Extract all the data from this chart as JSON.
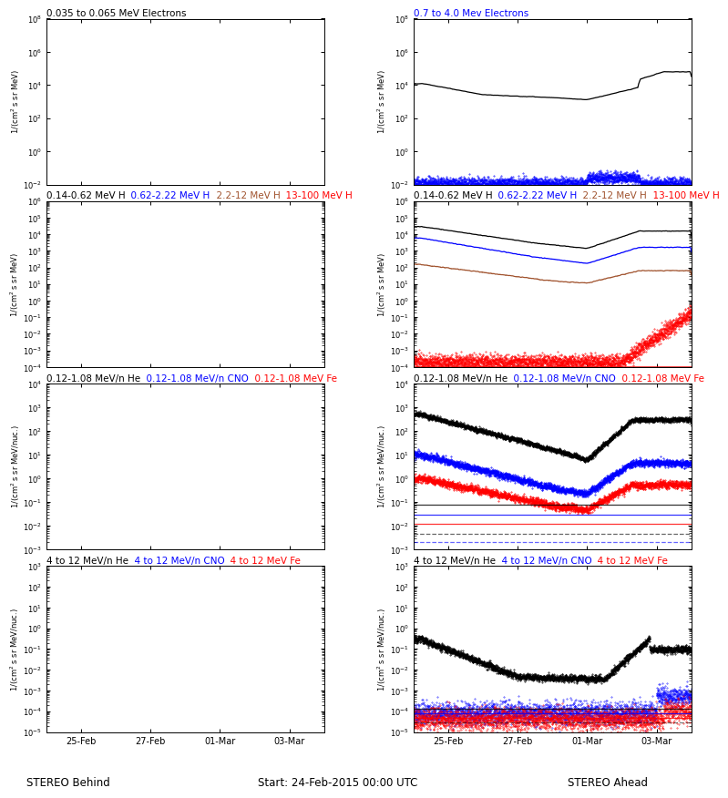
{
  "panels": {
    "row1_left_title": [
      [
        "0.035 to 0.065 MeV Electrons",
        "#000000"
      ]
    ],
    "row1_right_title": [
      [
        "0.7 to 4.0 Mev Electrons",
        "#0000ff"
      ]
    ],
    "row2_left_title": [
      [
        "0.14-0.62 MeV H",
        "#000000"
      ],
      [
        "  0.62-2.22 MeV H",
        "#0000ff"
      ],
      [
        "  2.2-12 MeV H",
        "#a0522d"
      ],
      [
        "  13-100 MeV H",
        "#ff0000"
      ]
    ],
    "row2_right_title": [
      [
        "0.14-0.62 MeV H",
        "#000000"
      ],
      [
        "  0.62-2.22 MeV H",
        "#0000ff"
      ],
      [
        "  2.2-12 MeV H",
        "#a0522d"
      ],
      [
        "  13-100 MeV H",
        "#ff0000"
      ]
    ],
    "row3_left_title": [
      [
        "0.12-1.08 MeV/n He",
        "#000000"
      ],
      [
        "  0.12-1.08 MeV/n CNO",
        "#0000ff"
      ],
      [
        "  0.12-1.08 MeV Fe",
        "#ff0000"
      ]
    ],
    "row3_right_title": [
      [
        "0.12-1.08 MeV/n He",
        "#000000"
      ],
      [
        "  0.12-1.08 MeV/n CNO",
        "#0000ff"
      ],
      [
        "  0.12-1.08 MeV Fe",
        "#ff0000"
      ]
    ],
    "row4_left_title": [
      [
        "4 to 12 MeV/n He",
        "#000000"
      ],
      [
        "  4 to 12 MeV/n CNO",
        "#0000ff"
      ],
      [
        "  4 to 12 MeV Fe",
        "#ff0000"
      ]
    ],
    "row4_right_title": [
      [
        "4 to 12 MeV/n He",
        "#000000"
      ],
      [
        "  4 to 12 MeV/n CNO",
        "#0000ff"
      ],
      [
        "  4 to 12 MeV Fe",
        "#ff0000"
      ]
    ]
  },
  "ylims": {
    "row1": [
      0.01,
      100000000.0
    ],
    "row2": [
      0.0001,
      1000000.0
    ],
    "row3": [
      0.001,
      10000.0
    ],
    "row4": [
      1e-05,
      1000.0
    ]
  },
  "ylabels": {
    "electrons": "1/{(cm$^2$ s sr MeV)}",
    "protons": "1/{(cm$^2$ s sr MeV)}",
    "heavy": "1/{(cm$^2$ s sr MeV/nuc.)}"
  },
  "xlabel_left": "STEREO Behind",
  "xlabel_right": "STEREO Ahead",
  "xlabel_center": "Start: 24-Feb-2015 00:00 UTC",
  "xtick_labels": [
    "25-Feb",
    "27-Feb",
    "01-Mar",
    "03-Mar"
  ],
  "xtick_positions": [
    1,
    3,
    5,
    7
  ],
  "bg_color": "#ffffff",
  "colors": {
    "black": "#000000",
    "blue": "#0000ff",
    "brown": "#a0522d",
    "red": "#ff0000"
  },
  "font_size_title": 7.5,
  "font_size_tick": 7,
  "font_size_label": 7
}
